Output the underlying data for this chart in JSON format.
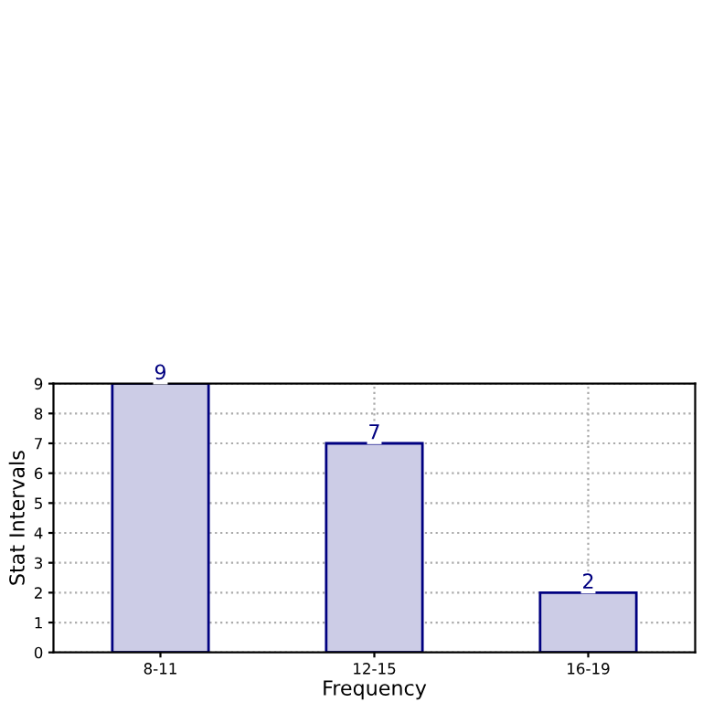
{
  "chart_data": {
    "type": "bar",
    "xlabel": "Frequency",
    "ylabel": "Stat Intervals",
    "categories": [
      "8-11",
      "12-15",
      "16-19"
    ],
    "series": [
      {
        "color": "#ccccE6",
        "values": [
          9,
          7,
          2
        ]
      }
    ],
    "ylim": [
      0,
      9
    ],
    "yticks": [
      0,
      1,
      2,
      3,
      4,
      5,
      6,
      7,
      8,
      9
    ],
    "grid": true,
    "data_labels": true
  }
}
